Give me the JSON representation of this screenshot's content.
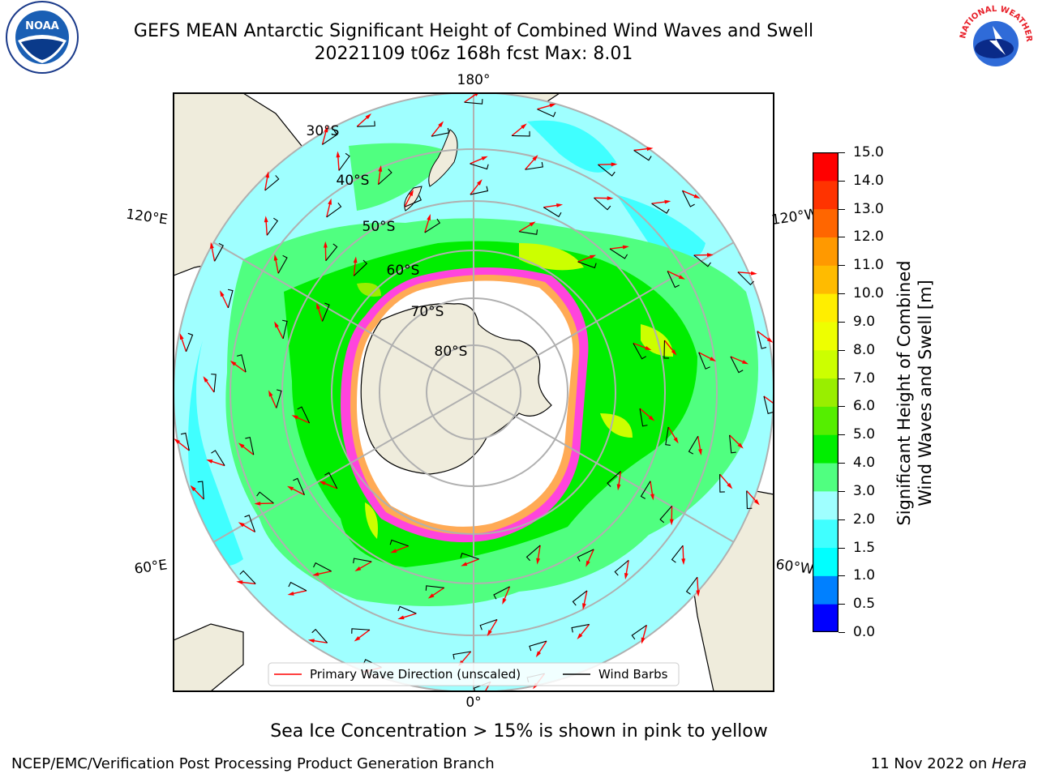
{
  "title": {
    "line1": "GEFS MEAN Antarctic Significant Height of Combined Wind Waves and Swell",
    "line2": "20221109 t06z 168h fcst   Max: 8.01"
  },
  "logos": {
    "noaa": {
      "text": "NOAA",
      "icon": "noaa-seagull-icon"
    },
    "nws": {
      "text": "NATIONAL WEATHER SERVICE",
      "icon": "nws-storm-icon"
    }
  },
  "map": {
    "lon_labels": {
      "top": "180°",
      "upper_left": "120°E",
      "upper_right": "120°W",
      "lower_left": "60°E",
      "lower_right": "60°W",
      "bottom": "0°"
    },
    "lat_labels": [
      "30°S",
      "40°S",
      "50°S",
      "60°S",
      "70°S",
      "80°S"
    ]
  },
  "legend": {
    "primary_wave": "Primary Wave Direction (unscaled)",
    "wind_barbs": "Wind Barbs"
  },
  "colorbar": {
    "label_line1": "Significant Height of Combined",
    "label_line2": "Wind Waves and Swell [m]",
    "ticks": [
      "15.0",
      "14.0",
      "13.0",
      "12.0",
      "11.0",
      "10.0",
      "9.0",
      "8.0",
      "7.0",
      "6.0",
      "5.0",
      "4.0",
      "3.0",
      "2.0",
      "1.5",
      "1.0",
      "0.5",
      "0.0"
    ],
    "colors": [
      "#0000ff",
      "#0080ff",
      "#00ffff",
      "#40ffff",
      "#9fffff",
      "#50ff80",
      "#00ee00",
      "#55ee00",
      "#99ee00",
      "#ccff00",
      "#eeff00",
      "#ffee00",
      "#ffbb00",
      "#ff9900",
      "#ff6600",
      "#ff3300",
      "#ff0000"
    ]
  },
  "footer": {
    "note": "Sea Ice Concentration > 15% is shown in pink to yellow",
    "left": "NCEP/EMC/Verification Post Processing Product Generation Branch",
    "right_date": "11 Nov 2022 on ",
    "right_host": "Hera"
  }
}
